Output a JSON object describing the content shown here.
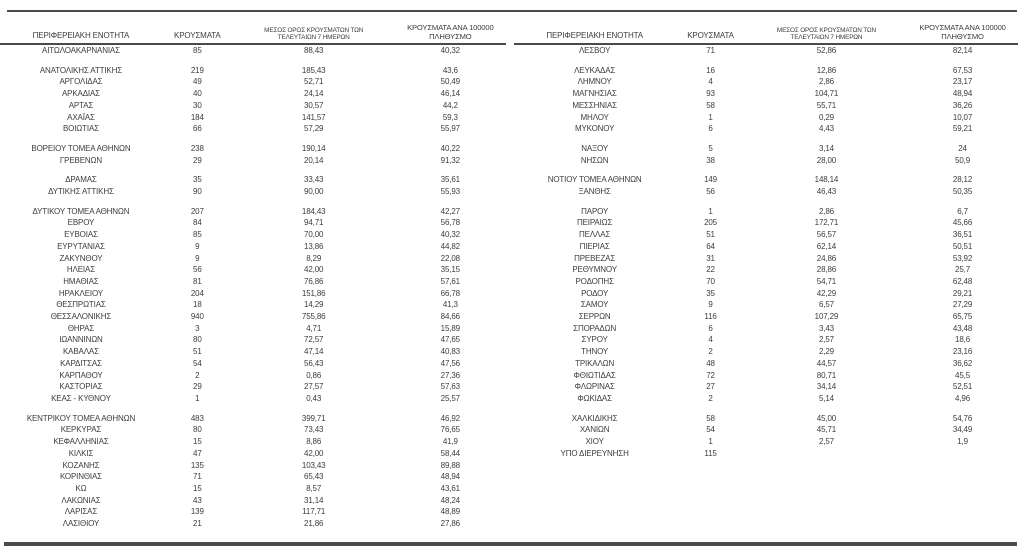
{
  "page": {
    "background_color": "#ffffff",
    "text_color": "#3d3d3d",
    "rule_color": "#4a4a4a",
    "description": "Greek regional units epidemiological case table, two tables side by side"
  },
  "columns": {
    "region": "ΠΕΡΙΦΕΡΕΙΑΚΗ ΕΝΟΤΗΤΑ",
    "cases": "ΚΡΟΥΣΜΑΤΑ",
    "avg7_line1": "ΜΕΣΟΣ ΟΡΟΣ ΚΡΟΥΣΜΑΤΩΝ ΤΩΝ",
    "avg7_line2": "ΤΕΛΕΥΤΑΙΩΝ 7 ΗΜΕΡΩΝ",
    "per100k_line1": "ΚΡΟΥΣΜΑΤΑ ΑΝΑ 100000",
    "per100k_line2": "ΠΛΗΘΥΣΜΟ"
  },
  "tables": {
    "left": {
      "rows": [
        {
          "region": "ΑΙΤΩΛΟΑΚΑΡΝΑΝΙΑΣ",
          "cases": "85",
          "avg7": "88,43",
          "per100k": "40,32"
        },
        {
          "spacer": true
        },
        {
          "region": "ΑΝΑΤΟΛΙΚΗΣ ΑΤΤΙΚΗΣ",
          "cases": "219",
          "avg7": "185,43",
          "per100k": "43,6"
        },
        {
          "region": "ΑΡΓΟΛΙΔΑΣ",
          "cases": "49",
          "avg7": "52,71",
          "per100k": "50,49"
        },
        {
          "region": "ΑΡΚΑΔΙΑΣ",
          "cases": "40",
          "avg7": "24,14",
          "per100k": "46,14"
        },
        {
          "region": "ΑΡΤΑΣ",
          "cases": "30",
          "avg7": "30,57",
          "per100k": "44,2"
        },
        {
          "region": "ΑΧΑΪΑΣ",
          "cases": "184",
          "avg7": "141,57",
          "per100k": "59,3"
        },
        {
          "region": "ΒΟΙΩΤΙΑΣ",
          "cases": "66",
          "avg7": "57,29",
          "per100k": "55,97"
        },
        {
          "spacer": true
        },
        {
          "region": "ΒΟΡΕΙΟΥ ΤΟΜΕΑ ΑΘΗΝΩΝ",
          "cases": "238",
          "avg7": "190,14",
          "per100k": "40,22"
        },
        {
          "region": "ΓΡΕΒΕΝΩΝ",
          "cases": "29",
          "avg7": "20,14",
          "per100k": "91,32"
        },
        {
          "spacer": true
        },
        {
          "region": "ΔΡΑΜΑΣ",
          "cases": "35",
          "avg7": "33,43",
          "per100k": "35,61"
        },
        {
          "region": "ΔΥΤΙΚΗΣ ΑΤΤΙΚΗΣ",
          "cases": "90",
          "avg7": "90,00",
          "per100k": "55,93"
        },
        {
          "spacer": true
        },
        {
          "region": "ΔΥΤΙΚΟΥ ΤΟΜΕΑ ΑΘΗΝΩΝ",
          "cases": "207",
          "avg7": "184,43",
          "per100k": "42,27"
        },
        {
          "region": "ΕΒΡΟΥ",
          "cases": "84",
          "avg7": "94,71",
          "per100k": "56,78"
        },
        {
          "region": "ΕΥΒΟΙΑΣ",
          "cases": "85",
          "avg7": "70,00",
          "per100k": "40,32"
        },
        {
          "region": "ΕΥΡΥΤΑΝΙΑΣ",
          "cases": "9",
          "avg7": "13,86",
          "per100k": "44,82"
        },
        {
          "region": "ΖΑΚΥΝΘΟΥ",
          "cases": "9",
          "avg7": "8,29",
          "per100k": "22,08"
        },
        {
          "region": "ΗΛΕΙΑΣ",
          "cases": "56",
          "avg7": "42,00",
          "per100k": "35,15"
        },
        {
          "region": "ΗΜΑΘΙΑΣ",
          "cases": "81",
          "avg7": "76,86",
          "per100k": "57,61"
        },
        {
          "region": "ΗΡΑΚΛΕΙΟΥ",
          "cases": "204",
          "avg7": "151,86",
          "per100k": "66,78"
        },
        {
          "region": "ΘΕΣΠΡΩΤΙΑΣ",
          "cases": "18",
          "avg7": "14,29",
          "per100k": "41,3"
        },
        {
          "region": "ΘΕΣΣΑΛΟΝΙΚΗΣ",
          "cases": "940",
          "avg7": "755,86",
          "per100k": "84,66"
        },
        {
          "region": "ΘΗΡΑΣ",
          "cases": "3",
          "avg7": "4,71",
          "per100k": "15,89"
        },
        {
          "region": "ΙΩΑΝΝΙΝΩΝ",
          "cases": "80",
          "avg7": "72,57",
          "per100k": "47,65"
        },
        {
          "region": "ΚΑΒΑΛΑΣ",
          "cases": "51",
          "avg7": "47,14",
          "per100k": "40,83"
        },
        {
          "region": "ΚΑΡΔΙΤΣΑΣ",
          "cases": "54",
          "avg7": "56,43",
          "per100k": "47,56"
        },
        {
          "region": "ΚΑΡΠΑΘΟΥ",
          "cases": "2",
          "avg7": "0,86",
          "per100k": "27,36"
        },
        {
          "region": "ΚΑΣΤΟΡΙΑΣ",
          "cases": "29",
          "avg7": "27,57",
          "per100k": "57,63"
        },
        {
          "region": "ΚΕΑΣ - ΚΥΘΝΟΥ",
          "cases": "1",
          "avg7": "0,43",
          "per100k": "25,57"
        },
        {
          "spacer": true
        },
        {
          "region": "ΚΕΝΤΡΙΚΟΥ ΤΟΜΕΑ ΑΘΗΝΩΝ",
          "cases": "483",
          "avg7": "399,71",
          "per100k": "46,92"
        },
        {
          "region": "ΚΕΡΚΥΡΑΣ",
          "cases": "80",
          "avg7": "73,43",
          "per100k": "76,65"
        },
        {
          "region": "ΚΕΦΑΛΛΗΝΙΑΣ",
          "cases": "15",
          "avg7": "8,86",
          "per100k": "41,9"
        },
        {
          "region": "ΚΙΛΚΙΣ",
          "cases": "47",
          "avg7": "42,00",
          "per100k": "58,44"
        },
        {
          "region": "ΚΟΖΑΝΗΣ",
          "cases": "135",
          "avg7": "103,43",
          "per100k": "89,88"
        },
        {
          "region": "ΚΟΡΙΝΘΙΑΣ",
          "cases": "71",
          "avg7": "65,43",
          "per100k": "48,94"
        },
        {
          "region": "ΚΩ",
          "cases": "15",
          "avg7": "8,57",
          "per100k": "43,61"
        },
        {
          "region": "ΛΑΚΩΝΙΑΣ",
          "cases": "43",
          "avg7": "31,14",
          "per100k": "48,24"
        },
        {
          "region": "ΛΑΡΙΣΑΣ",
          "cases": "139",
          "avg7": "117,71",
          "per100k": "48,89"
        },
        {
          "region": "ΛΑΣΙΘΙΟΥ",
          "cases": "21",
          "avg7": "21,86",
          "per100k": "27,86"
        }
      ]
    },
    "right": {
      "rows": [
        {
          "region": "ΛΕΣΒΟΥ",
          "cases": "71",
          "avg7": "52,86",
          "per100k": "82,14"
        },
        {
          "spacer": true
        },
        {
          "region": "ΛΕΥΚΑΔΑΣ",
          "cases": "16",
          "avg7": "12,86",
          "per100k": "67,53"
        },
        {
          "region": "ΛΗΜΝΟΥ",
          "cases": "4",
          "avg7": "2,86",
          "per100k": "23,17"
        },
        {
          "region": "ΜΑΓΝΗΣΙΑΣ",
          "cases": "93",
          "avg7": "104,71",
          "per100k": "48,94"
        },
        {
          "region": "ΜΕΣΣΗΝΙΑΣ",
          "cases": "58",
          "avg7": "55,71",
          "per100k": "36,26"
        },
        {
          "region": "ΜΗΛΟΥ",
          "cases": "1",
          "avg7": "0,29",
          "per100k": "10,07"
        },
        {
          "region": "ΜΥΚΟΝΟΥ",
          "cases": "6",
          "avg7": "4,43",
          "per100k": "59,21"
        },
        {
          "spacer": true
        },
        {
          "region": "ΝΑΞΟΥ",
          "cases": "5",
          "avg7": "3,14",
          "per100k": "24"
        },
        {
          "region": "ΝΗΣΩΝ",
          "cases": "38",
          "avg7": "28,00",
          "per100k": "50,9"
        },
        {
          "spacer": true
        },
        {
          "region": "ΝΟΤΙΟΥ ΤΟΜΕΑ ΑΘΗΝΩΝ",
          "cases": "149",
          "avg7": "148,14",
          "per100k": "28,12"
        },
        {
          "region": "ΞΑΝΘΗΣ",
          "cases": "56",
          "avg7": "46,43",
          "per100k": "50,35"
        },
        {
          "spacer": true
        },
        {
          "region": "ΠΑΡΟΥ",
          "cases": "1",
          "avg7": "2,86",
          "per100k": "6,7"
        },
        {
          "region": "ΠΕΙΡΑΙΩΣ",
          "cases": "205",
          "avg7": "172,71",
          "per100k": "45,66"
        },
        {
          "region": "ΠΕΛΛΑΣ",
          "cases": "51",
          "avg7": "56,57",
          "per100k": "36,51"
        },
        {
          "region": "ΠΙΕΡΙΑΣ",
          "cases": "64",
          "avg7": "62,14",
          "per100k": "50,51"
        },
        {
          "region": "ΠΡΕΒΕΖΑΣ",
          "cases": "31",
          "avg7": "24,86",
          "per100k": "53,92"
        },
        {
          "region": "ΡΕΘΥΜΝΟΥ",
          "cases": "22",
          "avg7": "28,86",
          "per100k": "25,7"
        },
        {
          "region": "ΡΟΔΟΠΗΣ",
          "cases": "70",
          "avg7": "54,71",
          "per100k": "62,48"
        },
        {
          "region": "ΡΟΔΟΥ",
          "cases": "35",
          "avg7": "42,29",
          "per100k": "29,21"
        },
        {
          "region": "ΣΑΜΟΥ",
          "cases": "9",
          "avg7": "6,57",
          "per100k": "27,29"
        },
        {
          "region": "ΣΕΡΡΩΝ",
          "cases": "116",
          "avg7": "107,29",
          "per100k": "65,75"
        },
        {
          "region": "ΣΠΟΡΑΔΩΝ",
          "cases": "6",
          "avg7": "3,43",
          "per100k": "43,48"
        },
        {
          "region": "ΣΥΡΟΥ",
          "cases": "4",
          "avg7": "2,57",
          "per100k": "18,6"
        },
        {
          "region": "ΤΗΝΟΥ",
          "cases": "2",
          "avg7": "2,29",
          "per100k": "23,16"
        },
        {
          "region": "ΤΡΙΚΑΛΩΝ",
          "cases": "48",
          "avg7": "44,57",
          "per100k": "36,62"
        },
        {
          "region": "ΦΘΙΩΤΙΔΑΣ",
          "cases": "72",
          "avg7": "80,71",
          "per100k": "45,5"
        },
        {
          "region": "ΦΛΩΡΙΝΑΣ",
          "cases": "27",
          "avg7": "34,14",
          "per100k": "52,51"
        },
        {
          "region": "ΦΩΚΙΔΑΣ",
          "cases": "2",
          "avg7": "5,14",
          "per100k": "4,96"
        },
        {
          "spacer": true
        },
        {
          "region": "ΧΑΛΚΙΔΙΚΗΣ",
          "cases": "58",
          "avg7": "45,00",
          "per100k": "54,76"
        },
        {
          "region": "ΧΑΝΙΩΝ",
          "cases": "54",
          "avg7": "45,71",
          "per100k": "34,49"
        },
        {
          "region": "ΧΙΟΥ",
          "cases": "1",
          "avg7": "2,57",
          "per100k": "1,9"
        },
        {
          "region": "ΥΠΟ ΔΙΕΡΕΥΝΗΣΗ",
          "cases": "115",
          "avg7": "",
          "per100k": ""
        }
      ]
    }
  }
}
